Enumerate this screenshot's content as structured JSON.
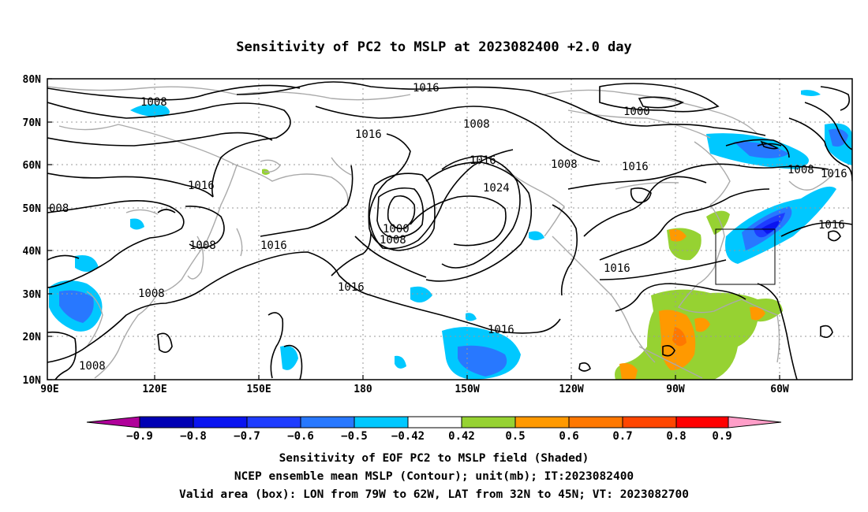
{
  "title": "Sensitivity of PC2 to MSLP at 2023082400 +2.0 day",
  "map": {
    "lon_labels": [
      "90E",
      "120E",
      "150E",
      "180",
      "150W",
      "120W",
      "90W",
      "60W"
    ],
    "lat_labels": [
      "80N",
      "70N",
      "60N",
      "50N",
      "40N",
      "30N",
      "20N",
      "10N"
    ],
    "valid_box": {
      "lon_from": "79W",
      "lon_to": "62W",
      "lat_from": "32N",
      "lat_to": "45N"
    },
    "contour_labels": [
      "1008",
      "1016",
      "1008",
      "1000",
      "1016",
      "1016",
      "1024",
      "1008",
      "1016",
      "008",
      "1016",
      "1000",
      "1008",
      "1008",
      "1016",
      "1016",
      "1016",
      "1008",
      "1008",
      "1016",
      "1016",
      "1016",
      "1008"
    ],
    "colors": {
      "land_outline": "#aaaaaa",
      "contour": "#000000",
      "neg_0_9": "#b0009a",
      "neg_0_8": "#0000b4",
      "neg_0_7": "#0a14f0",
      "neg_0_6": "#1e3cff",
      "neg_0_5": "#2878ff",
      "neg_0_42": "#00c8ff",
      "pos_0_42": "#96d232",
      "pos_0_5": "#ff9900",
      "pos_0_6": "#ff7800",
      "pos_0_7": "#ff4600",
      "pos_0_8": "#ff1e00",
      "pos_0_9": "#ff0000",
      "above_0_9": "#ff9ec8"
    }
  },
  "colorbar": {
    "ticks": [
      "−0.9",
      "−0.8",
      "−0.7",
      "−0.6",
      "−0.5",
      "−0.42",
      "0.42",
      "0.5",
      "0.6",
      "0.7",
      "0.8",
      "0.9"
    ]
  },
  "captions": {
    "line1": "Sensitivity of EOF PC2 to MSLP field (Shaded)",
    "line2": "NCEP ensemble mean MSLP (Contour); unit(mb); IT:2023082400",
    "line3": "Valid area (box): LON from 79W to 62W, LAT from 32N to 45N; VT: 2023082700"
  }
}
